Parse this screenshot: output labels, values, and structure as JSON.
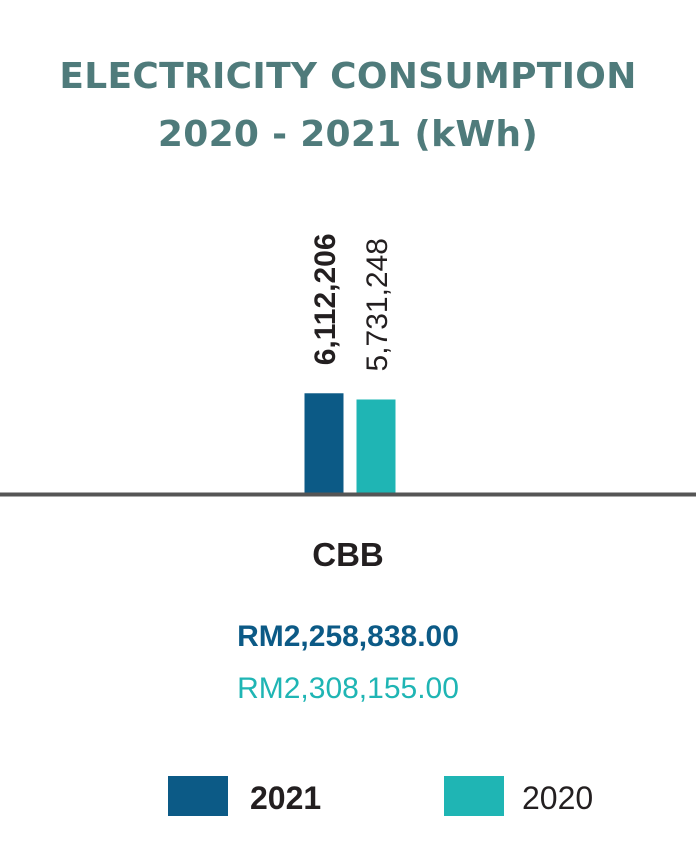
{
  "title_line1": "ELECTRICITY CONSUMPTION",
  "title_line2": "2020 - 2021 (kWh)",
  "colors": {
    "y2021": "#0c5a86",
    "y2020": "#1fb5b4",
    "title": "#4f7b7b",
    "axis": "#555555"
  },
  "chart_data": {
    "type": "bar",
    "title": "ELECTRICITY CONSUMPTION 2020 - 2021 (kWh)",
    "categories": [
      "CBB"
    ],
    "series": [
      {
        "name": "2021",
        "values": [
          6112206
        ],
        "value_labels": [
          "6,112,206"
        ],
        "color": "#0c5a86"
      },
      {
        "name": "2020",
        "values": [
          5731248
        ],
        "value_labels": [
          "5,731,248"
        ],
        "color": "#1fb5b4"
      }
    ],
    "ylim": [
      0,
      19000000
    ],
    "grid": false,
    "legend_position": "bottom"
  },
  "costs": {
    "y2021": "RM2,258,838.00",
    "y2020": "RM2,308,155.00"
  },
  "legend": [
    {
      "label": "2021",
      "color": "#0c5a86"
    },
    {
      "label": "2020",
      "color": "#1fb5b4"
    }
  ]
}
